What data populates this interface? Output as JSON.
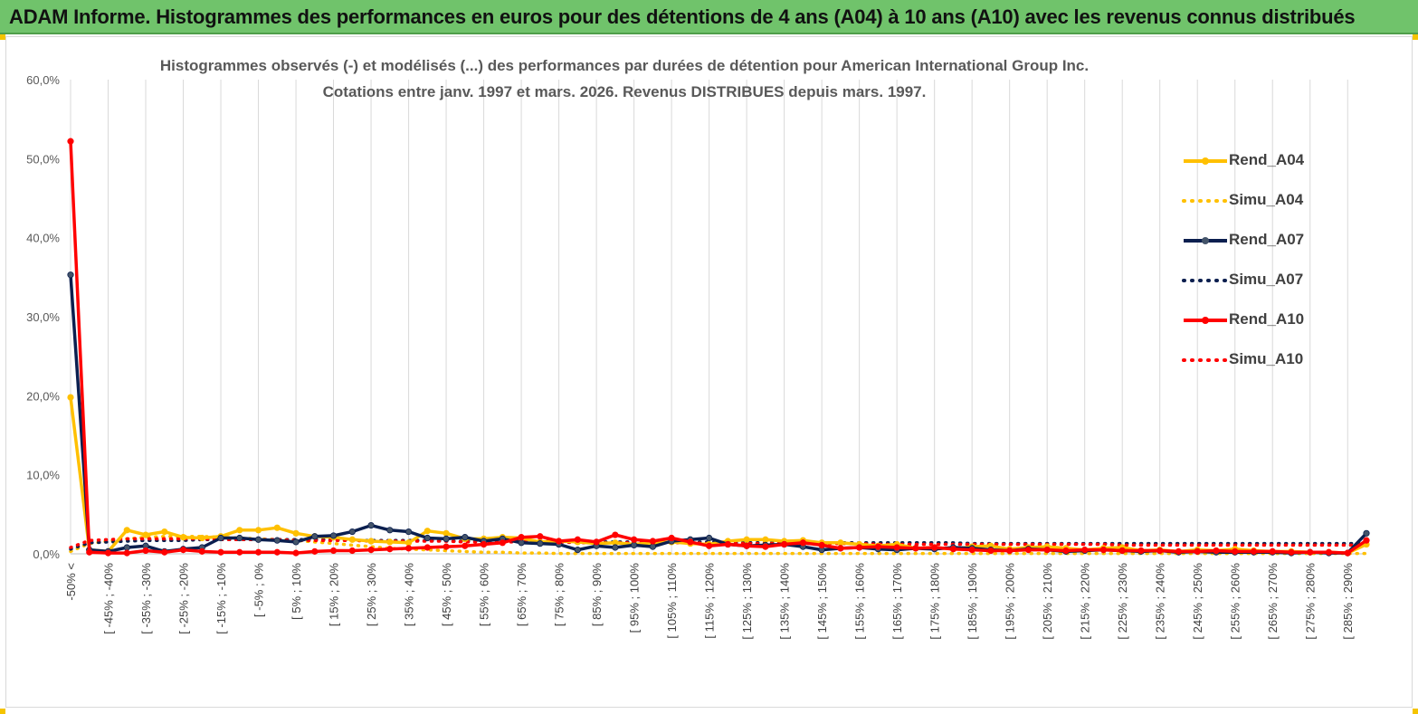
{
  "banner": {
    "title": "ADAM Informe. Histogrammes des performances en euros pour des détentions de 4 ans (A04) à 10 ans (A10) avec les revenus connus distribués"
  },
  "chart_data": {
    "type": "line",
    "title": "Histogrammes observés (-) et modélisés (...) des performances par durées de détention pour American International Group Inc.",
    "subtitle": "Cotations entre janv. 1997 et mars. 2026. Revenus DISTRIBUES depuis mars. 1997.",
    "xlabel": "",
    "ylabel": "",
    "ylim": [
      0,
      60
    ],
    "yticks": [
      "0,0%",
      "10,0%",
      "20,0%",
      "30,0%",
      "40,0%",
      "50,0%",
      "60,0%"
    ],
    "grid": "vertical",
    "legend_position": "right",
    "category_labels": [
      "-50% <",
      "[ -45% ; -40%",
      "[ -35% ; -30%",
      "[ -25% ; -20%",
      "[ -15% ; -10%",
      "[ -5% ; 0%",
      "[ 5% ; 10%",
      "[ 15% ; 20%",
      "[ 25% ; 30%",
      "[ 35% ; 40%",
      "[ 45% ; 50%",
      "[ 55% ; 60%",
      "[ 65% ; 70%",
      "[ 75% ; 80%",
      "[ 85% ; 90%",
      "[ 95% ; 100%",
      "[ 105% ; 110%",
      "[ 115% ; 120%",
      "[ 125% ; 130%",
      "[ 135% ; 140%",
      "[ 145% ; 150%",
      "[ 155% ; 160%",
      "[ 165% ; 170%",
      "[ 175% ; 180%",
      "[ 185% ; 190%",
      "[ 195% ; 200%",
      "[ 205% ; 210%",
      "[ 215% ; 220%",
      "[ 225% ; 230%",
      "[ 235% ; 240%",
      "[ 245% ; 250%",
      "[ 255% ; 260%",
      "[ 265% ; 270%",
      "[ 275% ; 280%",
      "[ 285% ; 290%"
    ],
    "num_points": 70,
    "series": [
      {
        "name": "Rend_A04",
        "style": "solid",
        "color": "#ffc000",
        "markers": true,
        "values": [
          19.8,
          0.5,
          0.3,
          3.0,
          2.4,
          2.8,
          2.1,
          2.0,
          2.2,
          3.0,
          3.0,
          3.3,
          2.6,
          2.2,
          2.1,
          1.8,
          1.6,
          1.5,
          1.4,
          2.9,
          2.6,
          1.9,
          1.9,
          2.1,
          2.0,
          1.5,
          1.6,
          1.5,
          1.3,
          1.4,
          1.2,
          1.4,
          1.5,
          1.3,
          1.2,
          1.6,
          1.8,
          1.8,
          1.6,
          1.7,
          1.4,
          1.4,
          1.2,
          1.0,
          1.2,
          0.7,
          0.8,
          0.6,
          0.9,
          1.0,
          0.6,
          0.8,
          0.9,
          0.7,
          0.5,
          0.7,
          0.8,
          0.4,
          0.5,
          0.3,
          0.5,
          0.4,
          0.6,
          0.4,
          0.3,
          0.3,
          0.2,
          0.2,
          0.1,
          1.2
        ]
      },
      {
        "name": "Simu_A04",
        "style": "dotted",
        "color": "#ffc000",
        "markers": false,
        "values": [
          0.3,
          1.3,
          1.6,
          1.9,
          2.1,
          2.2,
          2.2,
          2.2,
          2.1,
          2.0,
          1.9,
          1.8,
          1.7,
          1.5,
          1.3,
          1.1,
          0.9,
          0.7,
          0.6,
          0.5,
          0.4,
          0.3,
          0.2,
          0.2,
          0.1,
          0.1,
          0.05,
          0.05,
          0.05,
          0.05,
          0.05,
          0.05,
          0.05,
          0.05,
          0.05,
          0.05,
          0.05,
          0.05,
          0.05,
          0.05,
          0.05,
          0.05,
          0.05,
          0.05,
          0.05,
          0.05,
          0.05,
          0.05,
          0.05,
          0.05,
          0.05,
          0.05,
          0.05,
          0.05,
          0.05,
          0.05,
          0.05,
          0.05,
          0.05,
          0.05,
          0.05,
          0.05,
          0.05,
          0.05,
          0.05,
          0.05,
          0.05,
          0.05,
          0.05,
          0.05
        ]
      },
      {
        "name": "Rend_A07",
        "style": "solid",
        "color": "#0b1f4f",
        "markers": true,
        "values": [
          35.3,
          0.5,
          0.3,
          0.8,
          1.0,
          0.3,
          0.6,
          0.8,
          2.0,
          2.0,
          1.8,
          1.7,
          1.5,
          2.2,
          2.3,
          2.8,
          3.6,
          3.0,
          2.8,
          2.0,
          1.9,
          2.1,
          1.6,
          1.9,
          1.4,
          1.3,
          1.2,
          0.5,
          1.0,
          0.8,
          1.1,
          0.9,
          1.6,
          1.8,
          2.0,
          1.2,
          1.0,
          1.1,
          1.2,
          0.9,
          0.5,
          0.7,
          0.8,
          0.6,
          0.5,
          0.7,
          0.6,
          0.8,
          0.7,
          0.5,
          0.4,
          0.6,
          0.5,
          0.3,
          0.4,
          0.5,
          0.4,
          0.3,
          0.4,
          0.2,
          0.3,
          0.2,
          0.2,
          0.2,
          0.2,
          0.1,
          0.2,
          0.1,
          0.1,
          2.6
        ]
      },
      {
        "name": "Simu_A07",
        "style": "dotted",
        "color": "#0b1f4f",
        "markers": false,
        "values": [
          0.6,
          1.4,
          1.5,
          1.6,
          1.7,
          1.7,
          1.7,
          1.8,
          1.8,
          1.8,
          1.8,
          1.8,
          1.8,
          1.8,
          1.8,
          1.7,
          1.7,
          1.7,
          1.7,
          1.7,
          1.6,
          1.6,
          1.6,
          1.6,
          1.6,
          1.6,
          1.5,
          1.5,
          1.5,
          1.5,
          1.5,
          1.5,
          1.5,
          1.5,
          1.5,
          1.4,
          1.4,
          1.4,
          1.4,
          1.4,
          1.4,
          1.4,
          1.4,
          1.4,
          1.4,
          1.4,
          1.4,
          1.4,
          1.3,
          1.3,
          1.3,
          1.3,
          1.3,
          1.3,
          1.3,
          1.3,
          1.3,
          1.3,
          1.3,
          1.3,
          1.3,
          1.3,
          1.3,
          1.3,
          1.3,
          1.3,
          1.3,
          1.3,
          1.3,
          1.3
        ]
      },
      {
        "name": "Rend_A10",
        "style": "solid",
        "color": "#ff0000",
        "markers": true,
        "values": [
          52.2,
          0.2,
          0.1,
          0.1,
          0.4,
          0.2,
          0.5,
          0.3,
          0.2,
          0.2,
          0.2,
          0.2,
          0.1,
          0.3,
          0.4,
          0.4,
          0.5,
          0.6,
          0.7,
          0.8,
          0.9,
          1.0,
          1.2,
          1.4,
          2.1,
          2.2,
          1.6,
          1.8,
          1.5,
          2.4,
          1.8,
          1.6,
          2.0,
          1.5,
          1.0,
          1.2,
          1.0,
          0.9,
          1.2,
          1.4,
          1.1,
          0.7,
          0.8,
          0.9,
          0.8,
          0.7,
          0.8,
          0.6,
          0.5,
          0.4,
          0.4,
          0.5,
          0.5,
          0.4,
          0.5,
          0.5,
          0.4,
          0.4,
          0.4,
          0.3,
          0.3,
          0.4,
          0.3,
          0.3,
          0.3,
          0.2,
          0.2,
          0.2,
          0.1,
          1.7
        ]
      },
      {
        "name": "Simu_A10",
        "style": "dotted",
        "color": "#ff0000",
        "markers": false,
        "values": [
          0.8,
          1.7,
          1.8,
          1.9,
          1.9,
          1.9,
          1.9,
          1.9,
          1.8,
          1.8,
          1.8,
          1.8,
          1.7,
          1.7,
          1.7,
          1.7,
          1.6,
          1.6,
          1.6,
          1.6,
          1.6,
          1.5,
          1.5,
          1.5,
          1.5,
          1.5,
          1.5,
          1.4,
          1.4,
          1.4,
          1.4,
          1.4,
          1.4,
          1.4,
          1.3,
          1.3,
          1.3,
          1.3,
          1.3,
          1.3,
          1.3,
          1.3,
          1.3,
          1.2,
          1.2,
          1.2,
          1.2,
          1.2,
          1.2,
          1.2,
          1.2,
          1.2,
          1.2,
          1.2,
          1.2,
          1.2,
          1.1,
          1.1,
          1.1,
          1.1,
          1.1,
          1.1,
          1.1,
          1.1,
          1.1,
          1.1,
          1.1,
          1.1,
          1.1,
          1.1
        ]
      }
    ]
  }
}
